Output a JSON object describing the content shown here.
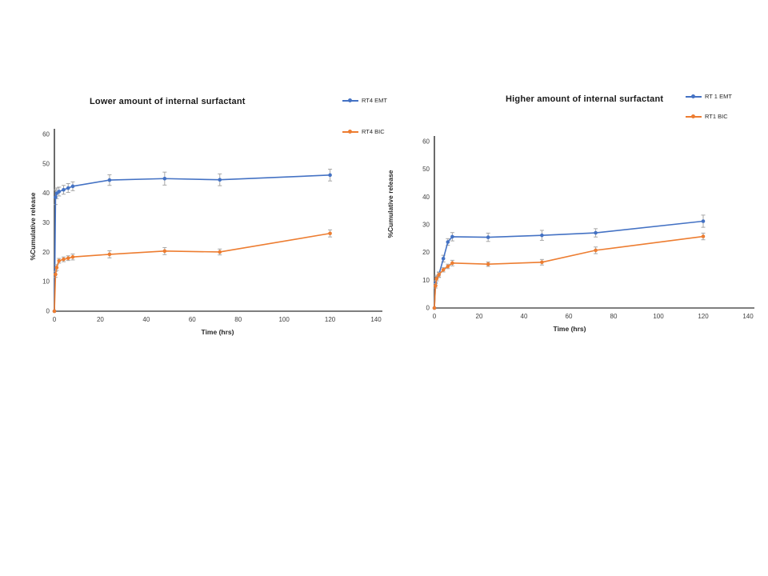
{
  "slide_title": "",
  "chart_data": [
    {
      "type": "line",
      "title": "Lower amount of internal surfactant",
      "xlabel": "Time (hrs)",
      "ylabel": "%Cumulative release",
      "xlim": [
        0,
        140
      ],
      "ylim": [
        0,
        60
      ],
      "xticks": [
        0,
        20,
        40,
        60,
        80,
        100,
        120,
        140
      ],
      "yticks": [
        0,
        10,
        20,
        30,
        40,
        50,
        60
      ],
      "grid": false,
      "legend_position": "top-right-outside",
      "x_axis_color": "#7f7f7f",
      "y_axis_color": "#595959",
      "error_bar_color": "#a6a6a6",
      "legend": [
        {
          "label": "RT4 EMT"
        },
        {
          "label": "RT4 BIC"
        }
      ],
      "series": [
        {
          "name": "RT4 EMT",
          "color": "#4472c4",
          "marker": "circle",
          "x": [
            0,
            0.5,
            1,
            2,
            4,
            6,
            8,
            24,
            48,
            72,
            120
          ],
          "y": [
            0,
            38.7,
            40.0,
            40.6,
            41.2,
            41.8,
            42.4,
            44.5,
            45.0,
            44.6,
            46.2
          ],
          "err": [
            0,
            2.5,
            1.8,
            1.5,
            1.5,
            1.5,
            1.5,
            1.8,
            2.2,
            2.0,
            2.0
          ]
        },
        {
          "name": "RT4 BIC",
          "color": "#ed7d31",
          "marker": "circle",
          "x": [
            0,
            0.5,
            1,
            2,
            4,
            6,
            8,
            24,
            48,
            72,
            120
          ],
          "y": [
            0,
            12.5,
            14.8,
            17.1,
            17.6,
            18.0,
            18.4,
            19.3,
            20.4,
            20.1,
            26.4
          ],
          "err": [
            0,
            1.0,
            1.0,
            0.8,
            0.8,
            0.8,
            1.0,
            1.2,
            1.2,
            1.0,
            1.2
          ]
        }
      ]
    },
    {
      "type": "line",
      "title": "Higher amount  of internal surfactant",
      "xlabel": "Time (hrs)",
      "ylabel": "%Cumulative release",
      "xlim": [
        0,
        140
      ],
      "ylim": [
        0,
        60
      ],
      "xticks": [
        0,
        20,
        40,
        60,
        80,
        100,
        120,
        140
      ],
      "yticks": [
        0,
        10,
        20,
        30,
        40,
        50,
        60
      ],
      "grid": false,
      "legend_position": "top-right-outside",
      "x_axis_color": "#7f7f7f",
      "y_axis_color": "#595959",
      "error_bar_color": "#a6a6a6",
      "legend": [
        {
          "label": "RT 1 EMT"
        },
        {
          "label": "RT1 BIC"
        }
      ],
      "series": [
        {
          "name": "RT 1 EMT",
          "color": "#4472c4",
          "marker": "circle",
          "x": [
            0,
            0.5,
            1,
            2,
            4,
            6,
            8,
            24,
            48,
            72,
            120
          ],
          "y": [
            0,
            9.0,
            10.8,
            12.0,
            17.8,
            23.8,
            25.7,
            25.5,
            26.2,
            27.1,
            31.3
          ],
          "err": [
            0,
            0.8,
            1.0,
            1.0,
            1.2,
            1.2,
            1.5,
            1.5,
            1.8,
            1.5,
            2.2
          ]
        },
        {
          "name": "RT1 BIC",
          "color": "#ed7d31",
          "marker": "circle",
          "x": [
            0,
            0.5,
            1,
            2,
            4,
            6,
            8,
            24,
            48,
            72,
            120
          ],
          "y": [
            0,
            8.0,
            10.6,
            12.0,
            13.8,
            15.0,
            16.2,
            15.8,
            16.5,
            20.8,
            25.8
          ],
          "err": [
            0,
            0.8,
            0.8,
            0.8,
            0.8,
            0.8,
            1.0,
            0.8,
            1.0,
            1.2,
            1.2
          ]
        }
      ]
    }
  ]
}
